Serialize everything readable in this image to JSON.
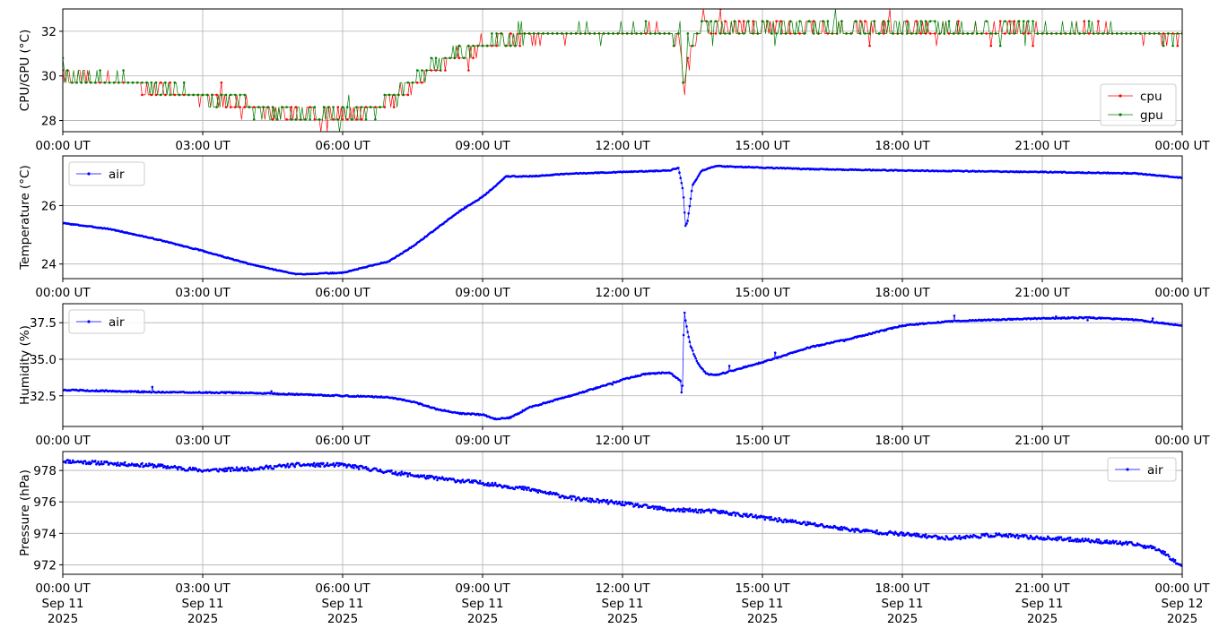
{
  "chart_data": [
    {
      "type": "line",
      "ylabel": "CPU/GPU (°C)",
      "xlim": [
        "2025-09-11 00:00",
        "2025-09-12 00:00"
      ],
      "ylim": [
        27.5,
        33.0
      ],
      "yticks": [
        28,
        30,
        32
      ],
      "grid": true,
      "legend_position": "lower-right",
      "x_tick_labels": [
        "00:00 UT",
        "03:00 UT",
        "06:00 UT",
        "09:00 UT",
        "12:00 UT",
        "15:00 UT",
        "18:00 UT",
        "21:00 UT",
        "00:00 UT"
      ],
      "series_shape": {
        "x_hours": [
          0,
          1.5,
          2.5,
          3.5,
          4.5,
          5.5,
          6.5,
          7.0,
          7.5,
          8.0,
          8.5,
          9.0,
          10.0,
          11.0,
          12.0,
          13.0,
          13.25,
          13.32,
          13.4,
          13.7,
          15,
          18,
          21,
          24
        ],
        "base_values": [
          30.0,
          29.6,
          29.2,
          28.9,
          28.3,
          28.2,
          28.3,
          28.9,
          29.7,
          30.4,
          30.9,
          31.3,
          31.8,
          31.9,
          31.9,
          31.9,
          31.5,
          29.0,
          31.0,
          32.1,
          32.1,
          32.1,
          32.0,
          31.8
        ]
      },
      "series": [
        {
          "name": "cpu",
          "color": "#ff0000",
          "offset": 0.0,
          "seed": 7
        },
        {
          "name": "gpu",
          "color": "#008000",
          "offset": 0.05,
          "seed": 19
        }
      ]
    },
    {
      "type": "line",
      "ylabel": "Temperature (°C)",
      "xlim": [
        "2025-09-11 00:00",
        "2025-09-12 00:00"
      ],
      "ylim": [
        23.5,
        27.7
      ],
      "yticks": [
        24,
        26
      ],
      "grid": true,
      "legend_position": "upper-left",
      "x_tick_labels": [
        "00:00 UT",
        "03:00 UT",
        "06:00 UT",
        "09:00 UT",
        "12:00 UT",
        "15:00 UT",
        "18:00 UT",
        "21:00 UT",
        "00:00 UT"
      ],
      "series_shape": {
        "x_hours": [
          0,
          1,
          2,
          3,
          4,
          5,
          6,
          7,
          7.5,
          8,
          8.5,
          9,
          9.3,
          9.5,
          10,
          11,
          12,
          13,
          13.2,
          13.3,
          13.35,
          13.4,
          13.5,
          13.7,
          14,
          15,
          16,
          18,
          21,
          23,
          24
        ],
        "values": [
          25.4,
          25.2,
          24.85,
          24.45,
          24.0,
          23.65,
          23.7,
          24.1,
          24.6,
          25.2,
          25.8,
          26.3,
          26.7,
          27.0,
          27.0,
          27.1,
          27.15,
          27.2,
          27.3,
          26.5,
          25.3,
          25.5,
          26.7,
          27.2,
          27.35,
          27.3,
          27.25,
          27.2,
          27.15,
          27.1,
          26.95
        ]
      },
      "series": [
        {
          "name": "air",
          "color": "#0000ff",
          "seed": 3
        }
      ]
    },
    {
      "type": "line",
      "ylabel": "Humidity (%)",
      "xlim": [
        "2025-09-11 00:00",
        "2025-09-12 00:00"
      ],
      "ylim": [
        30.4,
        38.8
      ],
      "yticks": [
        32.5,
        35.0,
        37.5
      ],
      "grid": true,
      "legend_position": "upper-left",
      "x_tick_labels": [
        "00:00 UT",
        "03:00 UT",
        "06:00 UT",
        "09:00 UT",
        "12:00 UT",
        "15:00 UT",
        "18:00 UT",
        "21:00 UT",
        "00:00 UT"
      ],
      "series_shape": {
        "x_hours": [
          0,
          2,
          4,
          6,
          7,
          7.5,
          8,
          8.5,
          9,
          9.3,
          9.6,
          10,
          11,
          12,
          12.5,
          13,
          13.25,
          13.28,
          13.32,
          13.36,
          13.45,
          13.6,
          13.8,
          14,
          15,
          16,
          17,
          18,
          19,
          20,
          21,
          22,
          23,
          24
        ],
        "values": [
          32.9,
          32.75,
          32.7,
          32.5,
          32.4,
          32.1,
          31.6,
          31.3,
          31.2,
          30.9,
          31.0,
          31.7,
          32.6,
          33.6,
          34.0,
          34.1,
          33.5,
          32.0,
          38.4,
          37.5,
          36.0,
          34.8,
          34.0,
          33.9,
          34.8,
          35.8,
          36.5,
          37.3,
          37.6,
          37.7,
          37.8,
          37.85,
          37.7,
          37.3
        ]
      },
      "series": [
        {
          "name": "air",
          "color": "#0000ff",
          "seed": 5
        }
      ]
    },
    {
      "type": "line",
      "ylabel": "Pressure (hPa)",
      "xlim": [
        "2025-09-11 00:00",
        "2025-09-12 00:00"
      ],
      "ylim": [
        971.4,
        979.2
      ],
      "yticks": [
        972,
        974,
        976,
        978
      ],
      "grid": true,
      "legend_position": "upper-right",
      "x_tick_labels": [
        "00:00 UT",
        "03:00 UT",
        "06:00 UT",
        "09:00 UT",
        "12:00 UT",
        "15:00 UT",
        "18:00 UT",
        "21:00 UT",
        "00:00 UT"
      ],
      "x_tick_labels_line2": [
        "Sep 11",
        "Sep 11",
        "Sep 11",
        "Sep 11",
        "Sep 11",
        "Sep 11",
        "Sep 11",
        "Sep 11",
        "Sep 12"
      ],
      "x_tick_labels_line3": [
        "2025",
        "2025",
        "2025",
        "2025",
        "2025",
        "2025",
        "2025",
        "2025",
        "2025"
      ],
      "series_shape": {
        "x_hours": [
          0,
          1,
          2,
          3,
          4,
          5,
          6,
          7,
          8,
          9,
          10,
          11,
          12,
          13,
          14,
          15,
          16,
          17,
          18,
          19,
          20,
          21,
          22,
          23,
          23.5,
          24
        ],
        "values": [
          978.6,
          978.45,
          978.3,
          978.0,
          978.1,
          978.35,
          978.35,
          977.9,
          977.5,
          977.2,
          976.8,
          976.2,
          975.9,
          975.5,
          975.4,
          975.0,
          974.6,
          974.2,
          973.95,
          973.7,
          973.9,
          973.7,
          973.55,
          973.3,
          973.0,
          971.9
        ]
      },
      "series": [
        {
          "name": "air",
          "color": "#0000ff",
          "seed": 11
        }
      ]
    }
  ]
}
